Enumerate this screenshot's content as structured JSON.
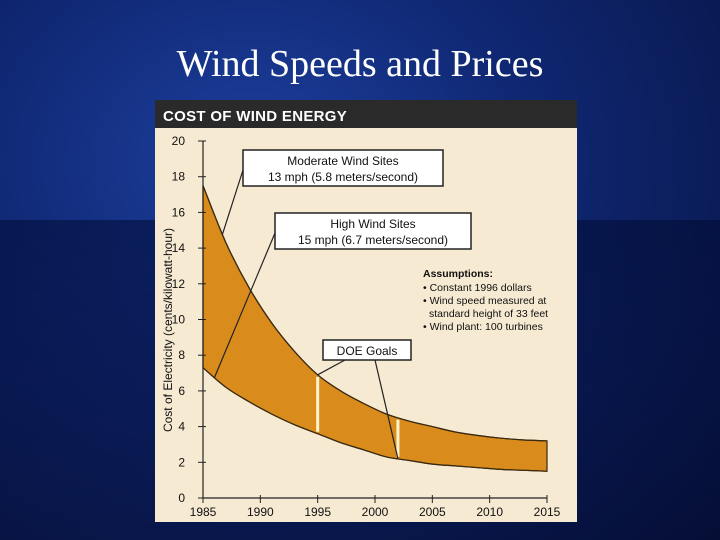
{
  "slide": {
    "title": "Wind Speeds and Prices"
  },
  "chart_data": {
    "type": "area",
    "title": "COST OF WIND ENERGY",
    "xlabel": "",
    "ylabel": "Cost of Electricity (cents/kilowatt-hour)",
    "xlim": [
      1985,
      2015
    ],
    "ylim": [
      0,
      20
    ],
    "xticks": [
      1985,
      1990,
      1995,
      2000,
      2005,
      2010,
      2015
    ],
    "yticks": [
      0,
      2,
      4,
      6,
      8,
      10,
      12,
      14,
      16,
      18,
      20
    ],
    "x": [
      1985,
      1987,
      1989,
      1991,
      1993,
      1995,
      1997,
      1999,
      2001,
      2003,
      2005,
      2007,
      2009,
      2011,
      2013,
      2015
    ],
    "series": [
      {
        "name": "Moderate Wind Sites",
        "values": [
          17.5,
          14.3,
          11.8,
          9.8,
          8.2,
          6.9,
          6.0,
          5.3,
          4.7,
          4.3,
          4.0,
          3.7,
          3.5,
          3.35,
          3.25,
          3.2
        ]
      },
      {
        "name": "High Wind Sites",
        "values": [
          7.3,
          6.2,
          5.4,
          4.7,
          4.1,
          3.6,
          3.1,
          2.7,
          2.3,
          2.1,
          1.9,
          1.8,
          1.7,
          1.6,
          1.55,
          1.5
        ]
      }
    ],
    "annotations": {
      "moderate": {
        "line1": "Moderate Wind Sites",
        "line2": "13 mph (5.8 meters/second)"
      },
      "high": {
        "line1": "High Wind Sites",
        "line2": "15 mph (6.7 meters/second)"
      },
      "doe": {
        "label": "DOE Goals",
        "years": [
          1995,
          2002
        ]
      }
    },
    "assumptions": {
      "heading": "Assumptions:",
      "lines": [
        "• Constant 1996 dollars",
        "• Wind speed measured at",
        "  standard height of 33 feet",
        "• Wind plant: 100 turbines"
      ]
    },
    "colors": {
      "band": "#d98c1c",
      "header": "#2a2a2a",
      "panel": "#f7ead2",
      "doe_line": "#fff2cc"
    }
  }
}
